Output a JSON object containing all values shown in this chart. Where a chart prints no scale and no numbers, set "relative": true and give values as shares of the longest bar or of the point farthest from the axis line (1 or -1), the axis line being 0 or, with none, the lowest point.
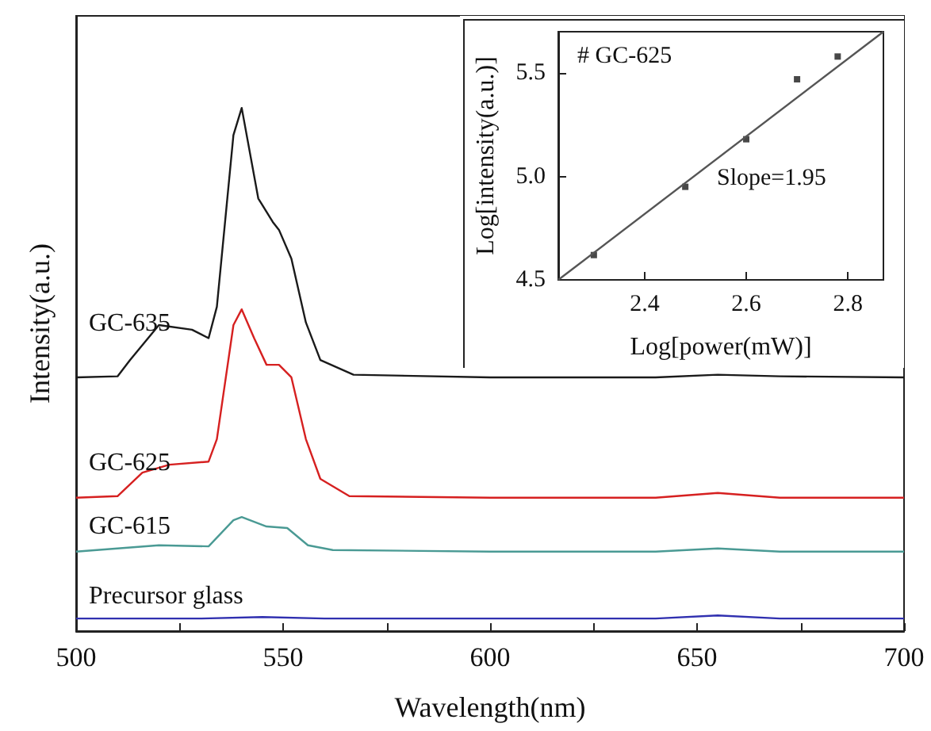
{
  "chart_data": [
    {
      "type": "line",
      "relative": true,
      "xlabel": "Wavelength(nm)",
      "ylabel": "Intensity(a.u.)",
      "xlim": [
        500,
        700
      ],
      "xticks": [
        500,
        {
          "value": 525,
          "label": null
        },
        550,
        {
          "value": 575,
          "label": null
        },
        600,
        {
          "value": 625,
          "label": null
        },
        650,
        {
          "value": 675,
          "label": null
        },
        700
      ],
      "tick_labels": "x",
      "grid": false,
      "legend": false,
      "marker": "none",
      "line_style": "solid",
      "series": [
        {
          "name": "GC-635",
          "color": "#1a1a1a",
          "x": [
            500,
            510,
            513,
            520,
            528,
            532,
            534,
            538,
            540,
            544,
            547.5,
            549,
            552,
            555.5,
            559,
            567,
            600,
            640,
            655,
            670,
            700
          ],
          "values": [
            0.485,
            0.487,
            0.518,
            0.585,
            0.576,
            0.56,
            0.62,
            0.948,
            1.0,
            0.827,
            0.782,
            0.767,
            0.712,
            0.59,
            0.518,
            0.49,
            0.485,
            0.485,
            0.49,
            0.487,
            0.485
          ]
        },
        {
          "name": "GC-625",
          "color": "#d62020",
          "x": [
            500,
            510,
            516,
            522.5,
            532,
            534,
            538,
            540,
            543,
            546,
            549,
            552,
            555.5,
            559,
            566,
            600,
            640,
            655,
            670,
            700
          ],
          "values": [
            0.255,
            0.258,
            0.303,
            0.318,
            0.324,
            0.367,
            0.585,
            0.615,
            0.56,
            0.509,
            0.509,
            0.485,
            0.367,
            0.291,
            0.258,
            0.255,
            0.255,
            0.264,
            0.255,
            0.255
          ]
        },
        {
          "name": "GC-615",
          "color": "#4a9a94",
          "x": [
            500,
            515,
            520,
            532,
            538,
            540,
            546,
            551,
            556,
            562,
            600,
            640,
            655,
            670,
            700
          ],
          "values": [
            0.152,
            0.161,
            0.164,
            0.162,
            0.212,
            0.218,
            0.2,
            0.197,
            0.164,
            0.155,
            0.152,
            0.152,
            0.158,
            0.152,
            0.152
          ]
        },
        {
          "name": "Precursor glass",
          "color": "#3030b0",
          "x": [
            500,
            530,
            545,
            560,
            640,
            655,
            670,
            700
          ],
          "values": [
            0.024,
            0.024,
            0.027,
            0.024,
            0.024,
            0.03,
            0.024,
            0.024
          ]
        }
      ]
    },
    {
      "type": "scatter",
      "xlabel": "Log[power(mW)]",
      "ylabel": "Log[intensity(a.u.)]",
      "xlim": [
        2.23,
        2.87
      ],
      "xticks": [
        2.4,
        2.6,
        2.8
      ],
      "ylim": [
        4.5,
        5.7
      ],
      "yticks": [
        4.5,
        {
          "value": 5.0,
          "label": "5.0"
        },
        5.5
      ],
      "grid": false,
      "legend": false,
      "marker": "square",
      "annotations": [
        "# GC-625",
        "Slope=1.95"
      ],
      "series": [
        {
          "color": "#1a1a1a",
          "x": [
            2.3,
            2.48,
            2.6,
            2.7,
            2.78
          ],
          "values": [
            4.62,
            4.95,
            5.18,
            5.47,
            5.58
          ]
        },
        {
          "type": "line",
          "color": "#555555",
          "marker": "none",
          "x": [
            2.23,
            2.87
          ],
          "values": [
            4.5,
            5.7
          ]
        }
      ]
    }
  ]
}
